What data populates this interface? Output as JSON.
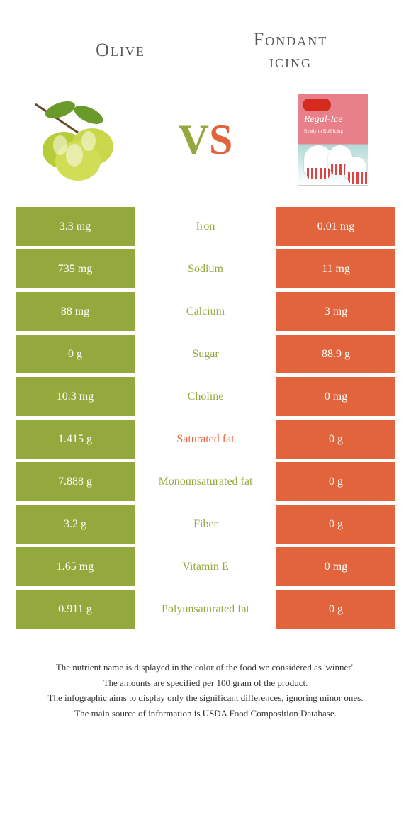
{
  "colors": {
    "left_bg": "#94a93d",
    "right_bg": "#e2643c",
    "left_text": "#94a93d",
    "right_text": "#e2643c"
  },
  "header": {
    "left_title": "Olive",
    "right_title_line1": "Fondant",
    "right_title_line2": "icing"
  },
  "fondant": {
    "brand_script": "Regal-Ice",
    "brand_sub": "Ready to Roll Icing"
  },
  "vs": {
    "v": "V",
    "s": "S"
  },
  "rows": [
    {
      "left": "3.3 mg",
      "label": "Iron",
      "right": "0.01 mg",
      "winner": "left"
    },
    {
      "left": "735 mg",
      "label": "Sodium",
      "right": "11 mg",
      "winner": "left"
    },
    {
      "left": "88 mg",
      "label": "Calcium",
      "right": "3 mg",
      "winner": "left"
    },
    {
      "left": "0 g",
      "label": "Sugar",
      "right": "88.9 g",
      "winner": "left"
    },
    {
      "left": "10.3 mg",
      "label": "Choline",
      "right": "0 mg",
      "winner": "left"
    },
    {
      "left": "1.415 g",
      "label": "Saturated fat",
      "right": "0 g",
      "winner": "right"
    },
    {
      "left": "7.888 g",
      "label": "Monounsaturated fat",
      "right": "0 g",
      "winner": "left"
    },
    {
      "left": "3.2 g",
      "label": "Fiber",
      "right": "0 g",
      "winner": "left"
    },
    {
      "left": "1.65 mg",
      "label": "Vitamin E",
      "right": "0 mg",
      "winner": "left"
    },
    {
      "left": "0.911 g",
      "label": "Polyunsaturated fat",
      "right": "0 g",
      "winner": "left"
    }
  ],
  "footer": {
    "l1": "The nutrient name is displayed in the color of the food we considered as 'winner'.",
    "l2": "The amounts are specified per 100 gram of the product.",
    "l3": "The infographic aims to display only the significant differences, ignoring minor ones.",
    "l4": "The main source of information is USDA Food Composition Database."
  }
}
